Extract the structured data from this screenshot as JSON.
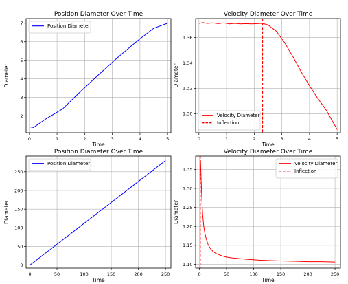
{
  "chart_data": [
    {
      "type": "line",
      "title": "Position Diameter Over Time",
      "xlabel": "Time",
      "ylabel": "Diameter",
      "xlim": [
        -0.12,
        5.12
      ],
      "ylim": [
        1.1,
        7.25
      ],
      "xticks": [
        0,
        1,
        2,
        3,
        4,
        5
      ],
      "yticks": [
        2,
        3,
        4,
        5,
        6,
        7
      ],
      "grid": true,
      "legend": "top-left",
      "series": [
        {
          "name": "Position Diameter",
          "color": "#0000ff",
          "style": "solid",
          "x": [
            0,
            0.15,
            0.6,
            1.2,
            1.8,
            2.5,
            3.2,
            3.9,
            4.5,
            5.0
          ],
          "y": [
            1.42,
            1.38,
            1.85,
            2.38,
            3.25,
            4.22,
            5.16,
            6.04,
            6.73,
            7.0
          ]
        }
      ]
    },
    {
      "type": "line",
      "title": "Velocity Diameter Over Time",
      "xlabel": "Time",
      "ylabel": "Diameter",
      "xlim": [
        -0.12,
        5.12
      ],
      "ylim": [
        1.285,
        1.375
      ],
      "xticks": [
        0,
        1,
        2,
        3,
        4,
        5
      ],
      "yticks": [
        1.3,
        1.32,
        1.34,
        1.36
      ],
      "ytick_decimals": 2,
      "grid": true,
      "legend": "bottom-left",
      "series": [
        {
          "name": "Velocity Diameter",
          "color": "#ff0000",
          "style": "solid",
          "x": [
            0,
            0.15,
            0.3,
            0.5,
            0.7,
            0.9,
            1.1,
            1.3,
            1.5,
            1.7,
            1.9,
            2.1,
            2.3,
            2.5,
            2.8,
            3.1,
            3.4,
            3.7,
            4.0,
            4.3,
            4.6,
            5.0
          ],
          "y": [
            1.3712,
            1.3718,
            1.3712,
            1.3716,
            1.371,
            1.3716,
            1.3708,
            1.3712,
            1.3708,
            1.371,
            1.3708,
            1.371,
            1.3712,
            1.37,
            1.365,
            1.356,
            1.345,
            1.333,
            1.322,
            1.312,
            1.303,
            1.2875
          ]
        },
        {
          "name": "Inflection",
          "color": "#ff0000",
          "style": "dashed",
          "vline": 2.3
        }
      ]
    },
    {
      "type": "line",
      "title": "Position Diameter Over Time",
      "xlabel": "Time",
      "ylabel": "Diameter",
      "xlim": [
        -7,
        260
      ],
      "ylim": [
        -8,
        292
      ],
      "xticks": [
        0,
        50,
        100,
        150,
        200,
        250
      ],
      "yticks": [
        0,
        50,
        100,
        150,
        200,
        250
      ],
      "grid": true,
      "legend": "top-left",
      "series": [
        {
          "name": "Position Diameter",
          "color": "#0000ff",
          "style": "solid",
          "x": [
            0,
            50,
            100,
            150,
            200,
            250
          ],
          "y": [
            0,
            56,
            112,
            168,
            224,
            280
          ]
        }
      ]
    },
    {
      "type": "line",
      "title": "Velocity Diameter Over Time",
      "xlabel": "Time",
      "ylabel": "Diameter",
      "xlim": [
        -7,
        260
      ],
      "ylim": [
        1.09,
        1.385
      ],
      "xticks": [
        0,
        50,
        100,
        150,
        200,
        250
      ],
      "yticks": [
        1.1,
        1.15,
        1.2,
        1.25,
        1.3,
        1.35
      ],
      "ytick_decimals": 2,
      "grid": true,
      "legend": "top-right",
      "series": [
        {
          "name": "Velocity Diameter",
          "color": "#ff0000",
          "style": "solid",
          "x": [
            2,
            3,
            4,
            5,
            6,
            8,
            10,
            13,
            16,
            20,
            25,
            30,
            40,
            50,
            60,
            75,
            90,
            110,
            130,
            150,
            175,
            200,
            225,
            250
          ],
          "y": [
            1.375,
            1.33,
            1.29,
            1.255,
            1.23,
            1.2,
            1.182,
            1.165,
            1.152,
            1.142,
            1.134,
            1.129,
            1.123,
            1.119,
            1.117,
            1.115,
            1.113,
            1.111,
            1.11,
            1.109,
            1.108,
            1.107,
            1.107,
            1.106
          ]
        },
        {
          "name": "Inflection",
          "color": "#ff0000",
          "style": "dashed",
          "vline": 1.5
        }
      ]
    }
  ]
}
